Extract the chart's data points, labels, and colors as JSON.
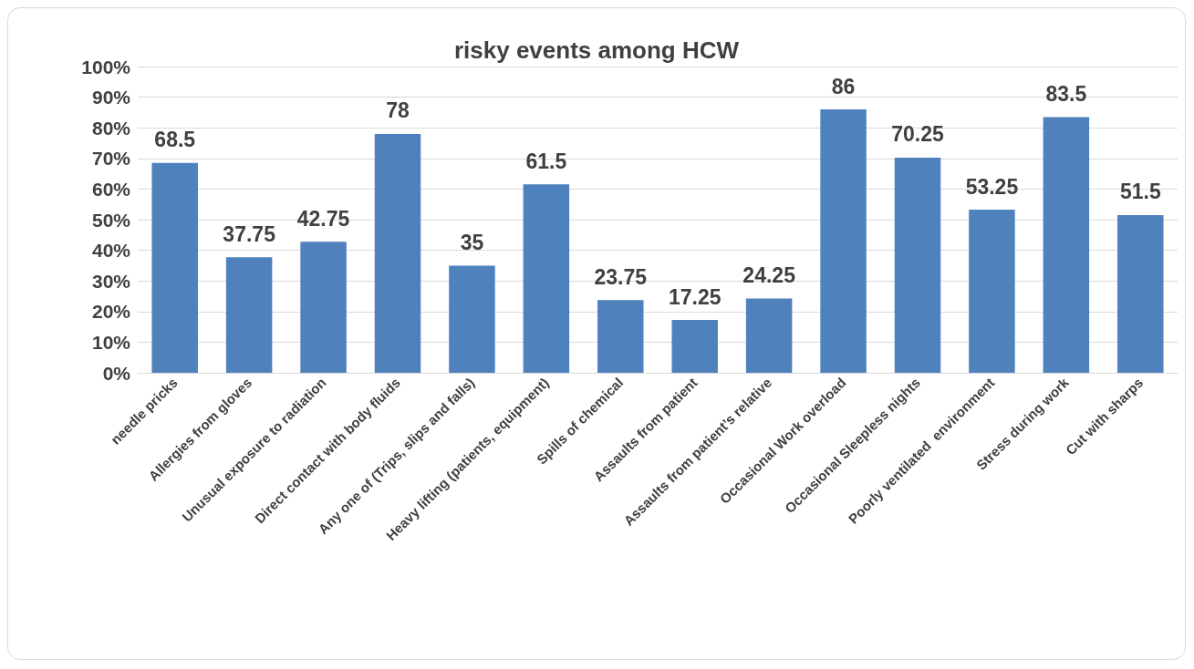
{
  "chart_data": {
    "type": "bar",
    "title": "risky events among HCW",
    "categories": [
      "needle pricks",
      "Allergies from gloves",
      "Unusual exposure to radiation",
      "Direct contact with body fluids",
      "Any one of (Trips, slips and falls)",
      "Heavy lifting (patients, equipment)",
      "Spills of chemical",
      "Assaults from patient",
      "Assaults from patient’s relative",
      "Occasional Work overload",
      "Occasional Sleepless nights",
      "Poorly ventilated  environment",
      "Stress during work",
      "Cut with sharps"
    ],
    "values": [
      68.5,
      37.75,
      42.75,
      78,
      35,
      61.5,
      23.75,
      17.25,
      24.25,
      86,
      70.25,
      53.25,
      83.5,
      51.5
    ],
    "color": "#4f81bd",
    "ylim": [
      0,
      100
    ],
    "yticks": [
      {
        "value": 0,
        "label": "0%"
      },
      {
        "value": 10,
        "label": "10%"
      },
      {
        "value": 20,
        "label": "20%"
      },
      {
        "value": 30,
        "label": "30%"
      },
      {
        "value": 40,
        "label": "40%"
      },
      {
        "value": 50,
        "label": "50%"
      },
      {
        "value": 60,
        "label": "60%"
      },
      {
        "value": 70,
        "label": "70%"
      },
      {
        "value": 80,
        "label": "80%"
      },
      {
        "value": 90,
        "label": "90%"
      },
      {
        "value": 100,
        "label": "100%"
      }
    ],
    "grid": "y",
    "data_labels": true
  }
}
